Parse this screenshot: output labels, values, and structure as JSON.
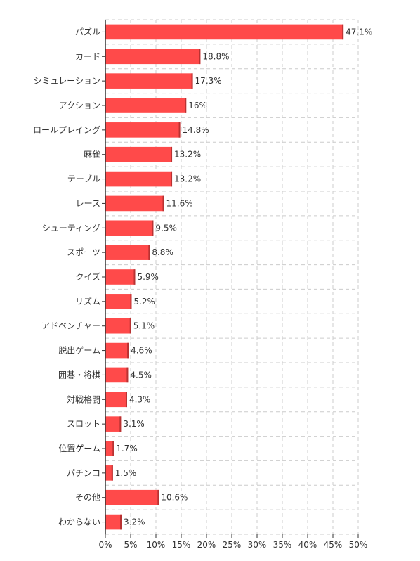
{
  "chart_data": {
    "type": "bar",
    "orientation": "horizontal",
    "categories": [
      "パズル",
      "カード",
      "シミュレーション",
      "アクション",
      "ロールプレイング",
      "麻雀",
      "テーブル",
      "レース",
      "シューティング",
      "スポーツ",
      "クイズ",
      "リズム",
      "アドベンチャー",
      "脱出ゲーム",
      "囲碁・将棋",
      "対戦格闘",
      "スロット",
      "位置ゲーム",
      "パチンコ",
      "その他",
      "わからない"
    ],
    "values": [
      47.1,
      18.8,
      17.3,
      16,
      14.8,
      13.2,
      13.2,
      11.6,
      9.5,
      8.8,
      5.9,
      5.2,
      5.1,
      4.6,
      4.5,
      4.3,
      3.1,
      1.7,
      1.5,
      10.6,
      3.2
    ],
    "value_labels": [
      "47.1%",
      "18.8%",
      "17.3%",
      "16%",
      "14.8%",
      "13.2%",
      "13.2%",
      "11.6%",
      "9.5%",
      "8.8%",
      "5.9%",
      "5.2%",
      "5.1%",
      "4.6%",
      "4.5%",
      "4.3%",
      "3.1%",
      "1.7%",
      "1.5%",
      "10.6%",
      "3.2%"
    ],
    "x_ticks": [
      0,
      5,
      10,
      15,
      20,
      25,
      30,
      35,
      40,
      45,
      50
    ],
    "x_tick_labels": [
      "0%",
      "5%",
      "10%",
      "15%",
      "20%",
      "25%",
      "30%",
      "35%",
      "40%",
      "45%",
      "50%"
    ],
    "xlim": [
      0,
      50
    ],
    "grid": true,
    "bar_color": "#ff4a4a",
    "bar_edge_color": "#b83232"
  }
}
